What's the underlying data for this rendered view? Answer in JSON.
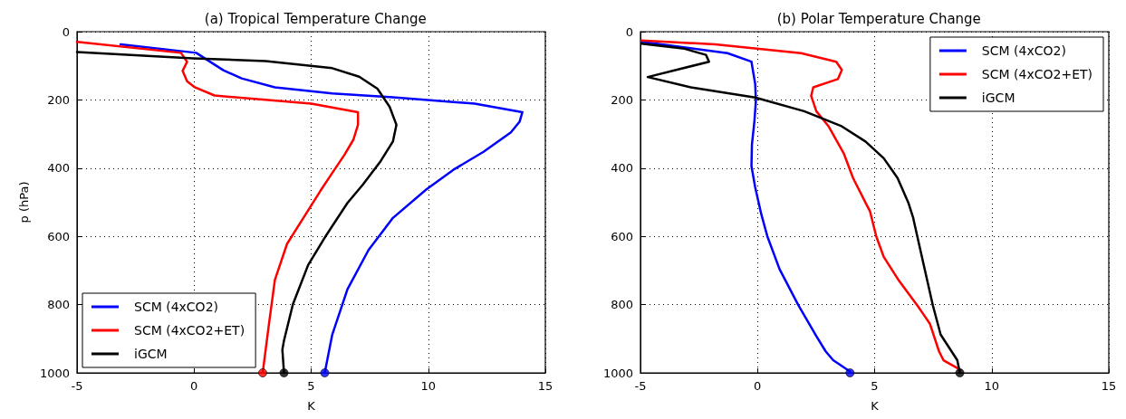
{
  "chart_data": [
    {
      "type": "line",
      "title": "(a) Tropical Temperature Change",
      "xlabel": "K",
      "ylabel": "p (hPa)",
      "xlim": [
        -5,
        15
      ],
      "xticks": [
        -5,
        0,
        5,
        10,
        15
      ],
      "ylim": [
        1000,
        0
      ],
      "yticks": [
        0,
        200,
        400,
        600,
        800,
        1000
      ],
      "grid": true,
      "legend": "bottom left",
      "series": [
        {
          "name": "SCM (4xCO2)",
          "color": "#0000ff",
          "x": [
            -3.14,
            0.09,
            1.25,
            2.03,
            3.45,
            5.9,
            8.49,
            11.98,
            14.02,
            13.9,
            13.53,
            12.36,
            11.07,
            9.91,
            8.49,
            7.45,
            6.55,
            5.9,
            5.58
          ],
          "values": [
            37,
            62,
            113,
            137,
            163,
            181,
            192,
            211,
            236,
            264,
            295,
            352,
            405,
            463,
            546,
            640,
            755,
            888,
            1000
          ]
        },
        {
          "name": "SCM (4xCO2+ET)",
          "color": "#ff0000",
          "x": [
            -5,
            -0.56,
            -0.3,
            -0.49,
            -0.3,
            0.03,
            0.87,
            5.0,
            7.0,
            7.0,
            6.8,
            6.42,
            5.9,
            5.39,
            3.97,
            3.45,
            3.19,
            2.93
          ],
          "values": [
            30,
            62,
            88,
            115,
            145,
            163,
            187,
            211,
            236,
            273,
            317,
            361,
            414,
            467,
            622,
            728,
            861,
            1000
          ]
        },
        {
          "name": "iGCM",
          "color": "#000000",
          "x": [
            -5,
            -0.04,
            3.06,
            5.9,
            7.05,
            7.83,
            8.35,
            8.64,
            8.49,
            7.97,
            7.2,
            6.55,
            5.65,
            4.87,
            4.22,
            3.84,
            3.77,
            3.84
          ],
          "values": [
            60,
            78,
            86,
            107,
            132,
            167,
            220,
            273,
            322,
            379,
            449,
            502,
            596,
            684,
            799,
            905,
            932,
            1000
          ]
        },
        {
          "type": "scatter",
          "marker": "circle",
          "color": "#ff0000",
          "x": [
            2.93
          ],
          "values": [
            1000
          ]
        },
        {
          "type": "scatter",
          "marker": "circle",
          "color": "#000000",
          "x": [
            3.84
          ],
          "values": [
            1000
          ]
        },
        {
          "type": "scatter",
          "marker": "circle",
          "color": "#0000ff",
          "x": [
            5.58
          ],
          "values": [
            1000
          ]
        }
      ]
    },
    {
      "type": "line",
      "title": "(b) Polar Temperature Change",
      "xlabel": "K",
      "xlim": [
        -5,
        15
      ],
      "xticks": [
        -5,
        0,
        5,
        10,
        15
      ],
      "ylim": [
        1000,
        0
      ],
      "yticks": [
        0,
        200,
        400,
        600,
        800,
        1000
      ],
      "grid": true,
      "legend": "top right",
      "series": [
        {
          "name": "SCM (4xCO2)",
          "color": "#0000ff",
          "x": [
            -4.95,
            -1.28,
            -0.26,
            -0.1,
            -0.07,
            -0.13,
            -0.24,
            -0.26,
            -0.1,
            0.16,
            0.42,
            0.94,
            1.73,
            2.51,
            2.91,
            3.23,
            3.95
          ],
          "values": [
            29,
            63,
            88,
            153,
            202,
            260,
            331,
            394,
            456,
            535,
            600,
            696,
            800,
            892,
            937,
            963,
            996
          ]
        },
        {
          "name": "SCM (4xCO2+ET)",
          "color": "#ff0000",
          "x": [
            -4.95,
            -1.81,
            1.86,
            3.36,
            3.6,
            3.43,
            2.38,
            2.29,
            2.51,
            3.04,
            3.69,
            4.08,
            4.61,
            4.8,
            5.07,
            5.39,
            6.05,
            6.83,
            7.36,
            7.75,
            7.94,
            8.66
          ],
          "values": [
            26,
            37,
            63,
            88,
            112,
            139,
            163,
            188,
            233,
            278,
            358,
            429,
            501,
            526,
            600,
            660,
            731,
            803,
            856,
            937,
            963,
            991
          ]
        },
        {
          "name": "iGCM",
          "color": "#000000",
          "x": [
            -4.95,
            -3.12,
            -2.2,
            -2.07,
            -4.69,
            -2.85,
            -0.1,
            1.99,
            3.56,
            4.61,
            5.39,
            5.98,
            6.44,
            6.64,
            6.96,
            7.49,
            7.82,
            8.53,
            8.64
          ],
          "values": [
            35,
            50,
            68,
            88,
            133,
            163,
            193,
            233,
            276,
            322,
            371,
            429,
            501,
            544,
            642,
            803,
            888,
            963,
            1000
          ]
        },
        {
          "type": "scatter",
          "marker": "circle",
          "color": "#0000ff",
          "x": [
            3.95
          ],
          "values": [
            1000
          ]
        },
        {
          "type": "scatter",
          "marker": "circle",
          "color": "#000000",
          "x": [
            8.64
          ],
          "values": [
            1000
          ]
        }
      ]
    }
  ]
}
